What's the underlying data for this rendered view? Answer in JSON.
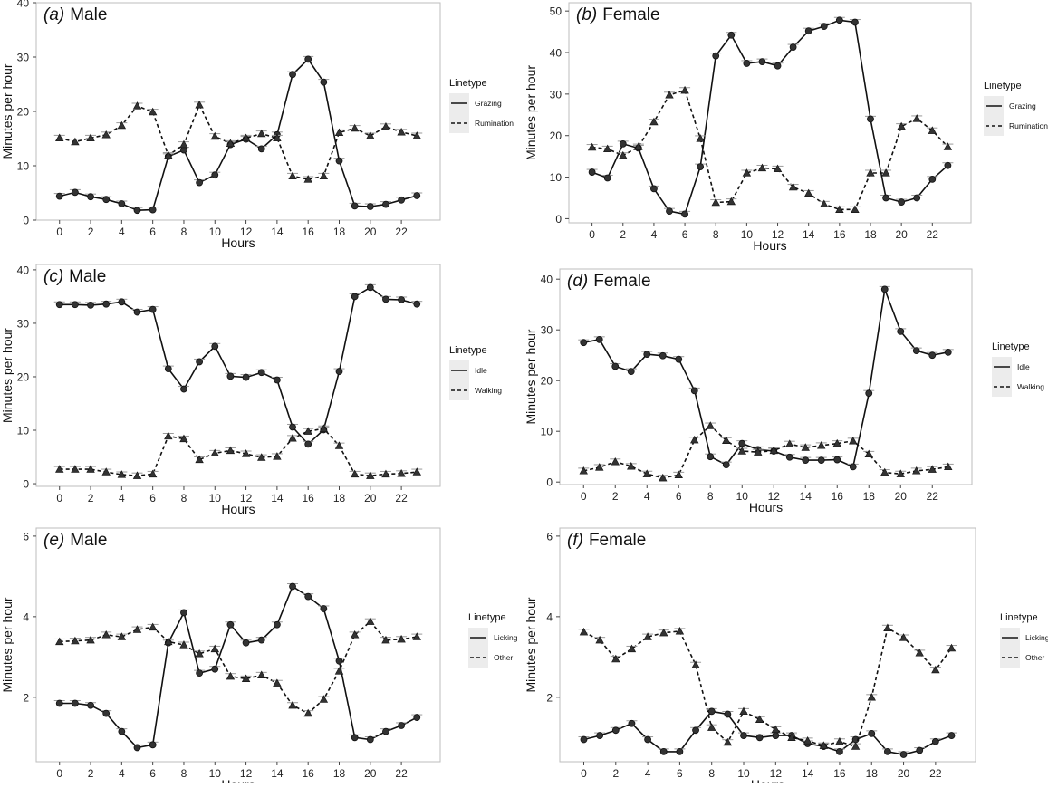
{
  "chart_data": [
    {
      "id": "a",
      "type": "line",
      "title_letter": "(a)",
      "title_text": "Male",
      "xlabel": "Hours",
      "ylabel": "Minutes per hour",
      "xlim": [
        -1.5,
        24.5
      ],
      "ylim": [
        0,
        40
      ],
      "xticks": [
        0,
        2,
        4,
        6,
        8,
        10,
        12,
        14,
        16,
        18,
        20,
        22
      ],
      "yticks": [
        0,
        10,
        20,
        30,
        40
      ],
      "legend_title": "Linetype",
      "x": [
        0,
        1,
        2,
        3,
        4,
        5,
        6,
        7,
        8,
        9,
        10,
        11,
        12,
        13,
        14,
        15,
        16,
        17,
        18,
        19,
        20,
        21,
        22,
        23
      ],
      "series": [
        {
          "name": "Grazing",
          "linestyle": "solid",
          "marker": "circle",
          "values": [
            4.4,
            5.1,
            4.3,
            3.8,
            3.0,
            1.8,
            1.9,
            11.7,
            12.9,
            6.9,
            8.3,
            13.9,
            14.9,
            13.1,
            15.7,
            26.8,
            29.6,
            25.4,
            10.9,
            2.6,
            2.5,
            2.9,
            3.7,
            4.5
          ]
        },
        {
          "name": "Rumination",
          "linestyle": "dashed",
          "marker": "triangle",
          "values": [
            15.1,
            14.4,
            15.1,
            15.7,
            17.4,
            21.0,
            19.9,
            11.9,
            13.9,
            21.2,
            15.4,
            14.1,
            15.1,
            15.9,
            15.1,
            8.1,
            7.5,
            8.1,
            16.1,
            16.9,
            15.5,
            17.2,
            16.2,
            15.5
          ]
        }
      ]
    },
    {
      "id": "b",
      "type": "line",
      "title_letter": "(b)",
      "title_text": "Female",
      "xlabel": "Hours",
      "ylabel": "Minutes per hour",
      "xlim": [
        -1.5,
        24.5
      ],
      "ylim": [
        -1,
        52
      ],
      "xticks": [
        0,
        2,
        4,
        6,
        8,
        10,
        12,
        14,
        16,
        18,
        20,
        22
      ],
      "yticks": [
        0,
        10,
        20,
        30,
        40,
        50
      ],
      "legend_title": "Linetype",
      "x": [
        0,
        1,
        2,
        3,
        4,
        5,
        6,
        7,
        8,
        9,
        10,
        11,
        12,
        13,
        14,
        15,
        16,
        17,
        18,
        19,
        20,
        21,
        22,
        23
      ],
      "series": [
        {
          "name": "Grazing",
          "linestyle": "solid",
          "marker": "circle",
          "values": [
            11.2,
            9.8,
            18.0,
            17.0,
            7.2,
            1.8,
            1.1,
            12.5,
            39.2,
            44.2,
            37.4,
            37.8,
            36.8,
            41.3,
            45.2,
            46.3,
            47.8,
            47.3,
            24.0,
            5.0,
            4.0,
            5.0,
            9.5,
            12.8
          ]
        },
        {
          "name": "Rumination",
          "linestyle": "dashed",
          "marker": "triangle",
          "values": [
            17.2,
            16.8,
            15.2,
            17.3,
            23.3,
            29.8,
            30.9,
            19.3,
            3.9,
            4.1,
            11.0,
            12.2,
            12.0,
            7.6,
            6.1,
            3.5,
            2.2,
            2.2,
            11.0,
            11.0,
            22.2,
            24.1,
            21.2,
            17.3
          ]
        }
      ]
    },
    {
      "id": "c",
      "type": "line",
      "title_letter": "(c)",
      "title_text": "Male",
      "xlabel": "Hours",
      "ylabel": "Minutes per hour",
      "xlim": [
        -1.5,
        24.5
      ],
      "ylim": [
        -0.5,
        41
      ],
      "xticks": [
        0,
        2,
        4,
        6,
        8,
        10,
        12,
        14,
        16,
        18,
        20,
        22
      ],
      "yticks": [
        0,
        10,
        20,
        30,
        40
      ],
      "legend_title": "Linetype",
      "x": [
        0,
        1,
        2,
        3,
        4,
        5,
        6,
        7,
        8,
        9,
        10,
        11,
        12,
        13,
        14,
        15,
        16,
        17,
        18,
        19,
        20,
        21,
        22,
        23
      ],
      "series": [
        {
          "name": "Idle",
          "linestyle": "solid",
          "marker": "circle",
          "values": [
            33.5,
            33.5,
            33.4,
            33.6,
            34.0,
            32.1,
            32.6,
            21.5,
            17.7,
            22.8,
            25.7,
            20.1,
            19.9,
            20.8,
            19.4,
            10.6,
            7.4,
            10.1,
            21.0,
            35.0,
            36.7,
            34.5,
            34.4,
            33.6
          ]
        },
        {
          "name": "Walking",
          "linestyle": "dashed",
          "marker": "triangle",
          "values": [
            2.7,
            2.7,
            2.7,
            2.2,
            1.7,
            1.5,
            1.8,
            8.9,
            8.4,
            4.5,
            5.7,
            6.2,
            5.6,
            4.9,
            5.1,
            8.5,
            9.8,
            10.3,
            7.1,
            1.8,
            1.5,
            1.8,
            1.9,
            2.2
          ]
        }
      ]
    },
    {
      "id": "d",
      "type": "line",
      "title_letter": "(d)",
      "title_text": "Female",
      "xlabel": "Hours",
      "ylabel": "Minutes per hour",
      "xlim": [
        -1.5,
        24.5
      ],
      "ylim": [
        -0.5,
        42
      ],
      "xticks": [
        0,
        2,
        4,
        6,
        8,
        10,
        12,
        14,
        16,
        18,
        20,
        22
      ],
      "yticks": [
        0,
        10,
        20,
        30,
        40
      ],
      "legend_title": "Linetype",
      "x": [
        0,
        1,
        2,
        3,
        4,
        5,
        6,
        7,
        8,
        9,
        10,
        11,
        12,
        13,
        14,
        15,
        16,
        17,
        18,
        19,
        20,
        21,
        22,
        23
      ],
      "series": [
        {
          "name": "Idle",
          "linestyle": "solid",
          "marker": "circle",
          "values": [
            27.5,
            28.1,
            22.8,
            21.8,
            25.2,
            24.9,
            24.2,
            18.0,
            5.0,
            3.4,
            7.6,
            6.4,
            6.1,
            4.9,
            4.3,
            4.3,
            4.4,
            3.0,
            17.5,
            38.0,
            29.7,
            25.9,
            25.0,
            25.6
          ]
        },
        {
          "name": "Walking",
          "linestyle": "dashed",
          "marker": "triangle",
          "values": [
            2.2,
            2.9,
            4.0,
            3.1,
            1.6,
            0.8,
            1.4,
            8.3,
            11.1,
            8.2,
            6.1,
            5.9,
            6.2,
            7.5,
            6.8,
            7.2,
            7.6,
            8.1,
            5.5,
            1.9,
            1.6,
            2.2,
            2.5,
            3.0
          ]
        }
      ]
    },
    {
      "id": "e",
      "type": "line",
      "title_letter": "(e)",
      "title_text": "Male",
      "xlabel": "Hours",
      "ylabel": "Minutes per hour",
      "xlim": [
        -1.5,
        24.5
      ],
      "ylim": [
        0.4,
        6.2
      ],
      "xticks": [
        0,
        2,
        4,
        6,
        8,
        10,
        12,
        14,
        16,
        18,
        20,
        22
      ],
      "yticks": [
        2,
        4,
        6
      ],
      "legend_title": "Linetype",
      "x": [
        0,
        1,
        2,
        3,
        4,
        5,
        6,
        7,
        8,
        9,
        10,
        11,
        12,
        13,
        14,
        15,
        16,
        17,
        18,
        19,
        20,
        21,
        22,
        23
      ],
      "series": [
        {
          "name": "Licking",
          "linestyle": "solid",
          "marker": "circle",
          "values": [
            1.85,
            1.85,
            1.8,
            1.6,
            1.15,
            0.75,
            0.82,
            3.35,
            4.1,
            2.6,
            2.7,
            3.8,
            3.35,
            3.42,
            3.8,
            4.75,
            4.5,
            4.2,
            2.9,
            1.0,
            0.95,
            1.15,
            1.3,
            1.5
          ]
        },
        {
          "name": "Other",
          "linestyle": "dashed",
          "marker": "triangle",
          "values": [
            3.38,
            3.4,
            3.42,
            3.55,
            3.5,
            3.68,
            3.74,
            3.38,
            3.3,
            3.08,
            3.2,
            2.52,
            2.46,
            2.55,
            2.35,
            1.8,
            1.6,
            1.95,
            2.65,
            3.55,
            3.88,
            3.42,
            3.44,
            3.5
          ]
        }
      ]
    },
    {
      "id": "f",
      "type": "line",
      "title_letter": "(f)",
      "title_text": "Female",
      "xlabel": "Hours",
      "ylabel": "Minutes per hour",
      "xlim": [
        -1.5,
        24.5
      ],
      "ylim": [
        0.4,
        6.2
      ],
      "xticks": [
        0,
        2,
        4,
        6,
        8,
        10,
        12,
        14,
        16,
        18,
        20,
        22
      ],
      "yticks": [
        2,
        4,
        6
      ],
      "legend_title": "Linetype",
      "x": [
        0,
        1,
        2,
        3,
        4,
        5,
        6,
        7,
        8,
        9,
        10,
        11,
        12,
        13,
        14,
        15,
        16,
        17,
        18,
        19,
        20,
        21,
        22,
        23
      ],
      "series": [
        {
          "name": "Licking",
          "linestyle": "solid",
          "marker": "circle",
          "values": [
            0.95,
            1.05,
            1.18,
            1.35,
            0.95,
            0.65,
            0.65,
            1.18,
            1.65,
            1.58,
            1.05,
            1.0,
            1.05,
            1.05,
            0.85,
            0.78,
            0.65,
            0.95,
            1.1,
            0.65,
            0.58,
            0.68,
            0.9,
            1.05
          ]
        },
        {
          "name": "Other",
          "linestyle": "dashed",
          "marker": "triangle",
          "values": [
            3.62,
            3.42,
            2.95,
            3.2,
            3.5,
            3.6,
            3.64,
            2.8,
            1.25,
            0.88,
            1.65,
            1.45,
            1.2,
            1.0,
            0.92,
            0.8,
            0.9,
            0.78,
            2.0,
            3.72,
            3.48,
            3.1,
            2.68,
            3.22
          ]
        }
      ]
    }
  ]
}
